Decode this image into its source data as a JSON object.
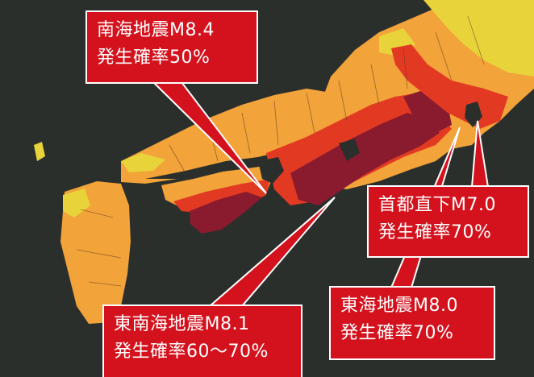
{
  "map": {
    "colors": {
      "background": "#2b2f2c",
      "low": "#e9d33a",
      "medium": "#f2a33a",
      "high": "#e23a22",
      "very_high": "#8a1a2e",
      "callout": "#d3121d"
    }
  },
  "callouts": {
    "nankai": {
      "name": "南海地震M8.4",
      "probability": "発生確率50%"
    },
    "tonankai": {
      "name": "東南海地震M8.1",
      "probability": "発生確率60〜70%"
    },
    "shuto": {
      "name": "首都直下M7.0",
      "probability": "発生確率70%"
    },
    "tokai": {
      "name": "東海地震M8.0",
      "probability": "発生確率70%"
    }
  }
}
